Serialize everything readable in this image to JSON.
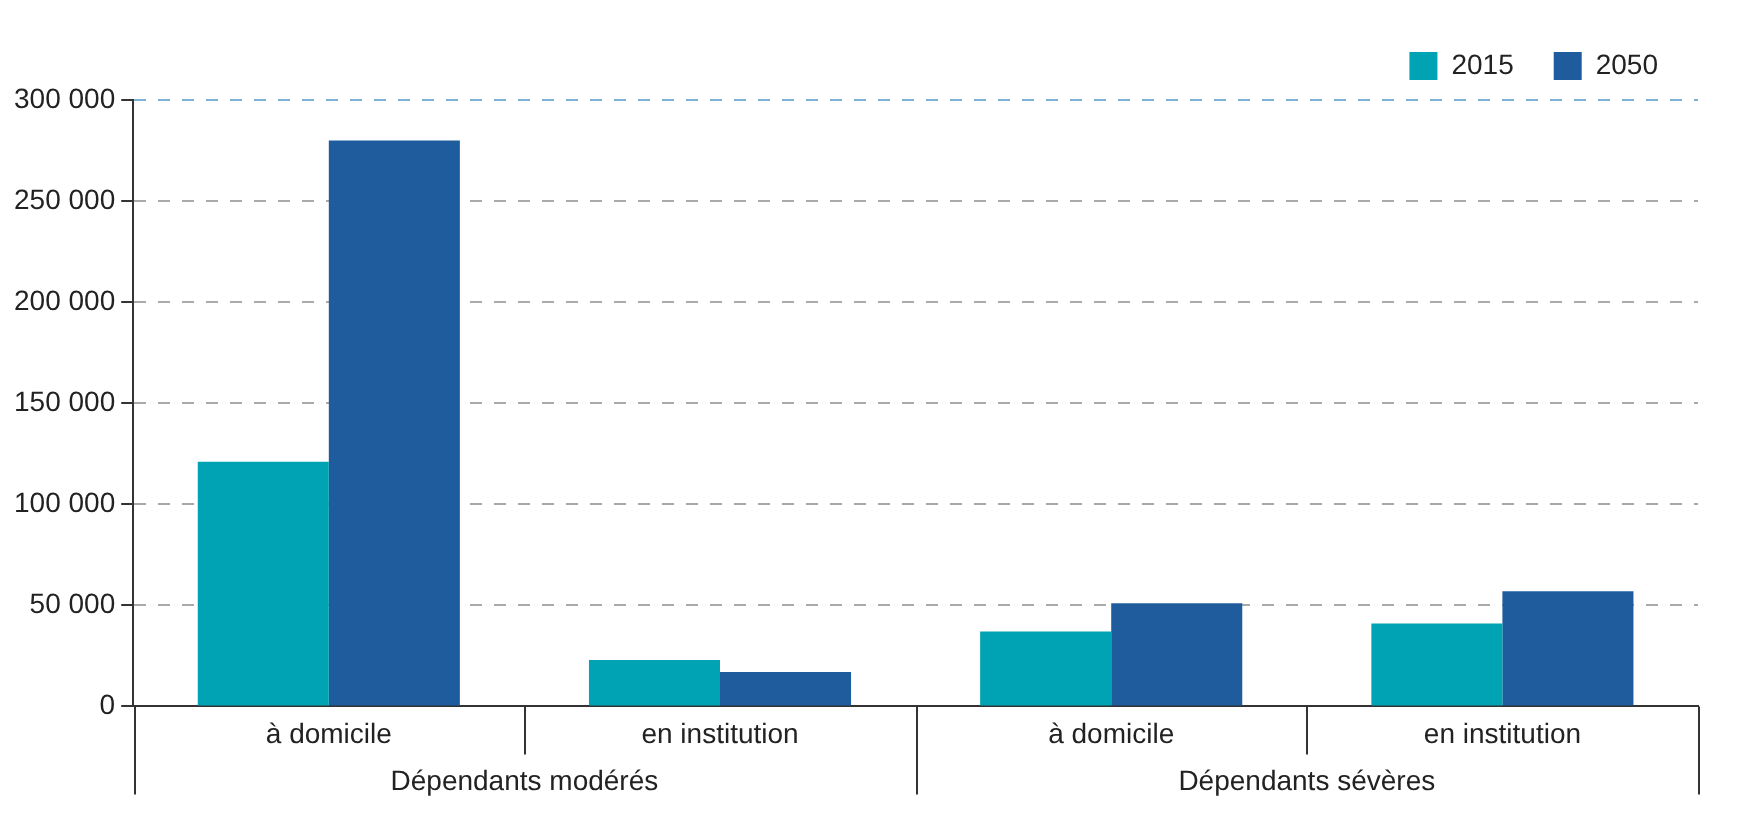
{
  "chart_data": {
    "type": "bar",
    "categories": [
      "à domicile",
      "en institution",
      "à domicile",
      "en institution"
    ],
    "series": [
      {
        "name": "2015",
        "color": "#00a3b4",
        "values": [
          121000,
          23000,
          37000,
          41000
        ]
      },
      {
        "name": "2050",
        "color": "#1f5c9e",
        "values": [
          280000,
          17000,
          51000,
          57000
        ]
      }
    ],
    "ylim": [
      0,
      300000
    ],
    "yticks": [
      {
        "value": 0,
        "label": "0"
      },
      {
        "value": 50000,
        "label": "50 000"
      },
      {
        "value": 100000,
        "label": "100 000"
      },
      {
        "value": 150000,
        "label": "150 000"
      },
      {
        "value": 200000,
        "label": "200 000"
      },
      {
        "value": 250000,
        "label": "250 000"
      },
      {
        "value": 300000,
        "label": "300 000"
      }
    ],
    "grid": "y",
    "legend": "top right",
    "annotations": [
      "Dépendants modérés",
      "Dépendants sévères"
    ]
  }
}
